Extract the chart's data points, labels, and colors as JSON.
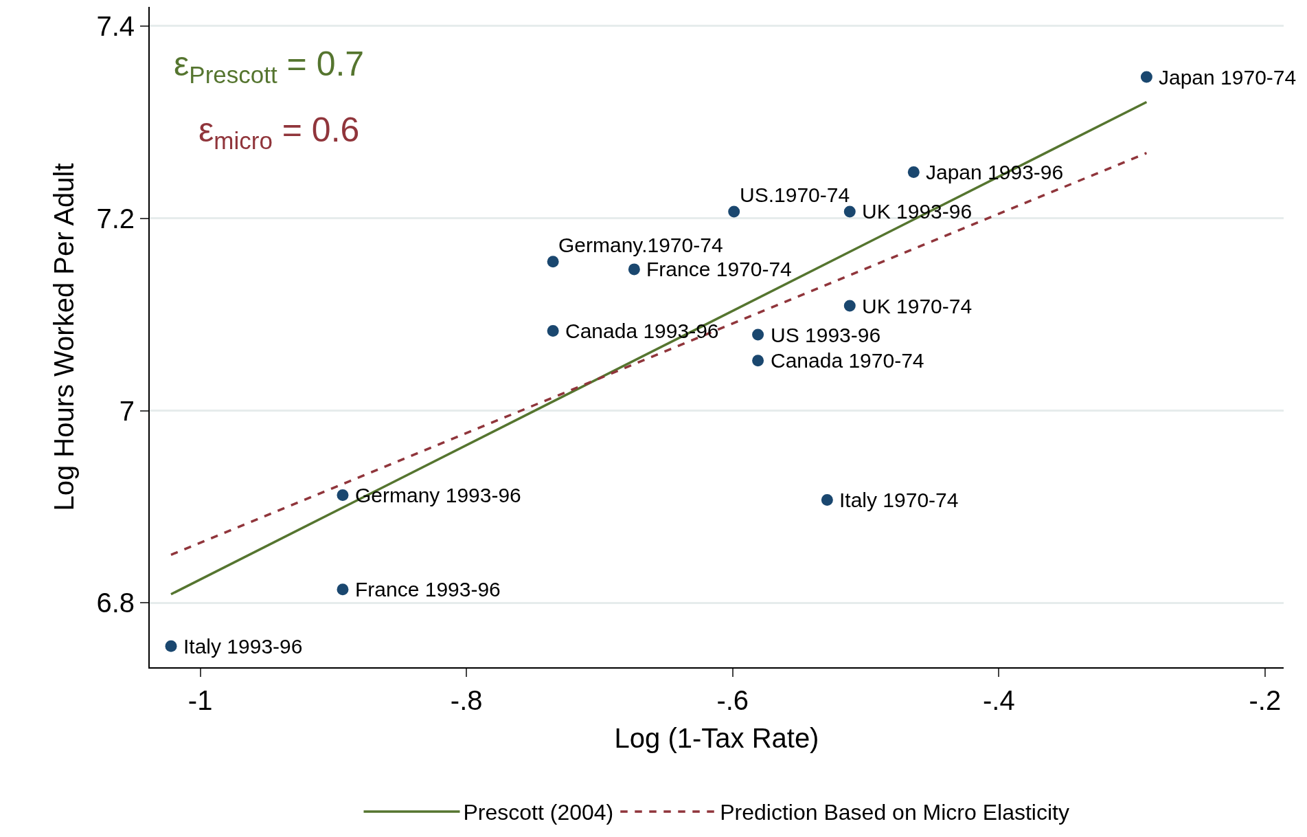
{
  "chart_data": {
    "type": "scatter",
    "xlabel": "Log (1-Tax Rate)",
    "ylabel": "Log Hours Worked Per Adult",
    "xlim": [
      -1.038,
      -0.186
    ],
    "ylim": [
      6.733,
      7.42
    ],
    "xticks": [
      {
        "value": -1,
        "label": "-1"
      },
      {
        "value": -0.8,
        "label": "-.8"
      },
      {
        "value": -0.6,
        "label": "-.6"
      },
      {
        "value": -0.4,
        "label": "-.4"
      },
      {
        "value": -0.2,
        "label": "-.2"
      }
    ],
    "yticks": [
      6.8,
      7,
      7.2,
      7.4
    ],
    "grid": "y",
    "legend": "bottom",
    "series": [
      {
        "type": "scatter",
        "marker": "circle",
        "color": "#1a476f",
        "x": [
          -1.022,
          -0.893,
          -0.893,
          -0.735,
          -0.735,
          -0.674,
          -0.599,
          -0.581,
          -0.581,
          -0.529,
          -0.512,
          -0.512,
          -0.464,
          -0.289
        ],
        "values": [
          6.755,
          6.814,
          6.912,
          7.083,
          7.155,
          7.147,
          7.207,
          7.079,
          7.052,
          6.907,
          7.109,
          7.207,
          7.248,
          7.347
        ]
      },
      {
        "type": "line",
        "name": "Prescott (2004)",
        "color": "#55752f",
        "line_style": "solid",
        "x": [
          -1.022,
          -0.289
        ],
        "values": [
          6.809,
          7.321
        ]
      },
      {
        "type": "line",
        "name": "Prediction Based on Micro Elasticity",
        "color": "#90353b",
        "line_style": "dashed",
        "x": [
          -1.022,
          -0.289
        ],
        "values": [
          6.85,
          7.268
        ]
      }
    ],
    "annotations": [
      "ε$_{Prescott}$ = 0.7",
      "ε$_{micro}$ = 0.6",
      {
        "text": "Italy 1993-96",
        "x": -1.022,
        "y": 6.755
      },
      {
        "text": "France 1993-96",
        "x": -0.893,
        "y": 6.814
      },
      {
        "text": "Germany 1993-96",
        "x": -0.893,
        "y": 6.912
      },
      {
        "text": "Canada 1993-96",
        "x": -0.735,
        "y": 7.083
      },
      {
        "text": "Germany.1970-74",
        "x": -0.735,
        "y": 7.155
      },
      {
        "text": "France 1970-74",
        "x": -0.674,
        "y": 7.147
      },
      {
        "text": "US.1970-74",
        "x": -0.599,
        "y": 7.207
      },
      {
        "text": "US 1993-96",
        "x": -0.581,
        "y": 7.079
      },
      {
        "text": "Canada 1970-74",
        "x": -0.581,
        "y": 7.052
      },
      {
        "text": "Italy 1970-74",
        "x": -0.529,
        "y": 6.907
      },
      {
        "text": "UK 1970-74",
        "x": -0.512,
        "y": 7.109
      },
      {
        "text": "UK 1993-96",
        "x": -0.512,
        "y": 7.207
      },
      {
        "text": "Japan 1993-96",
        "x": -0.464,
        "y": 7.248
      },
      {
        "text": "Japan 1970-74",
        "x": -0.289,
        "y": 7.347
      }
    ]
  }
}
